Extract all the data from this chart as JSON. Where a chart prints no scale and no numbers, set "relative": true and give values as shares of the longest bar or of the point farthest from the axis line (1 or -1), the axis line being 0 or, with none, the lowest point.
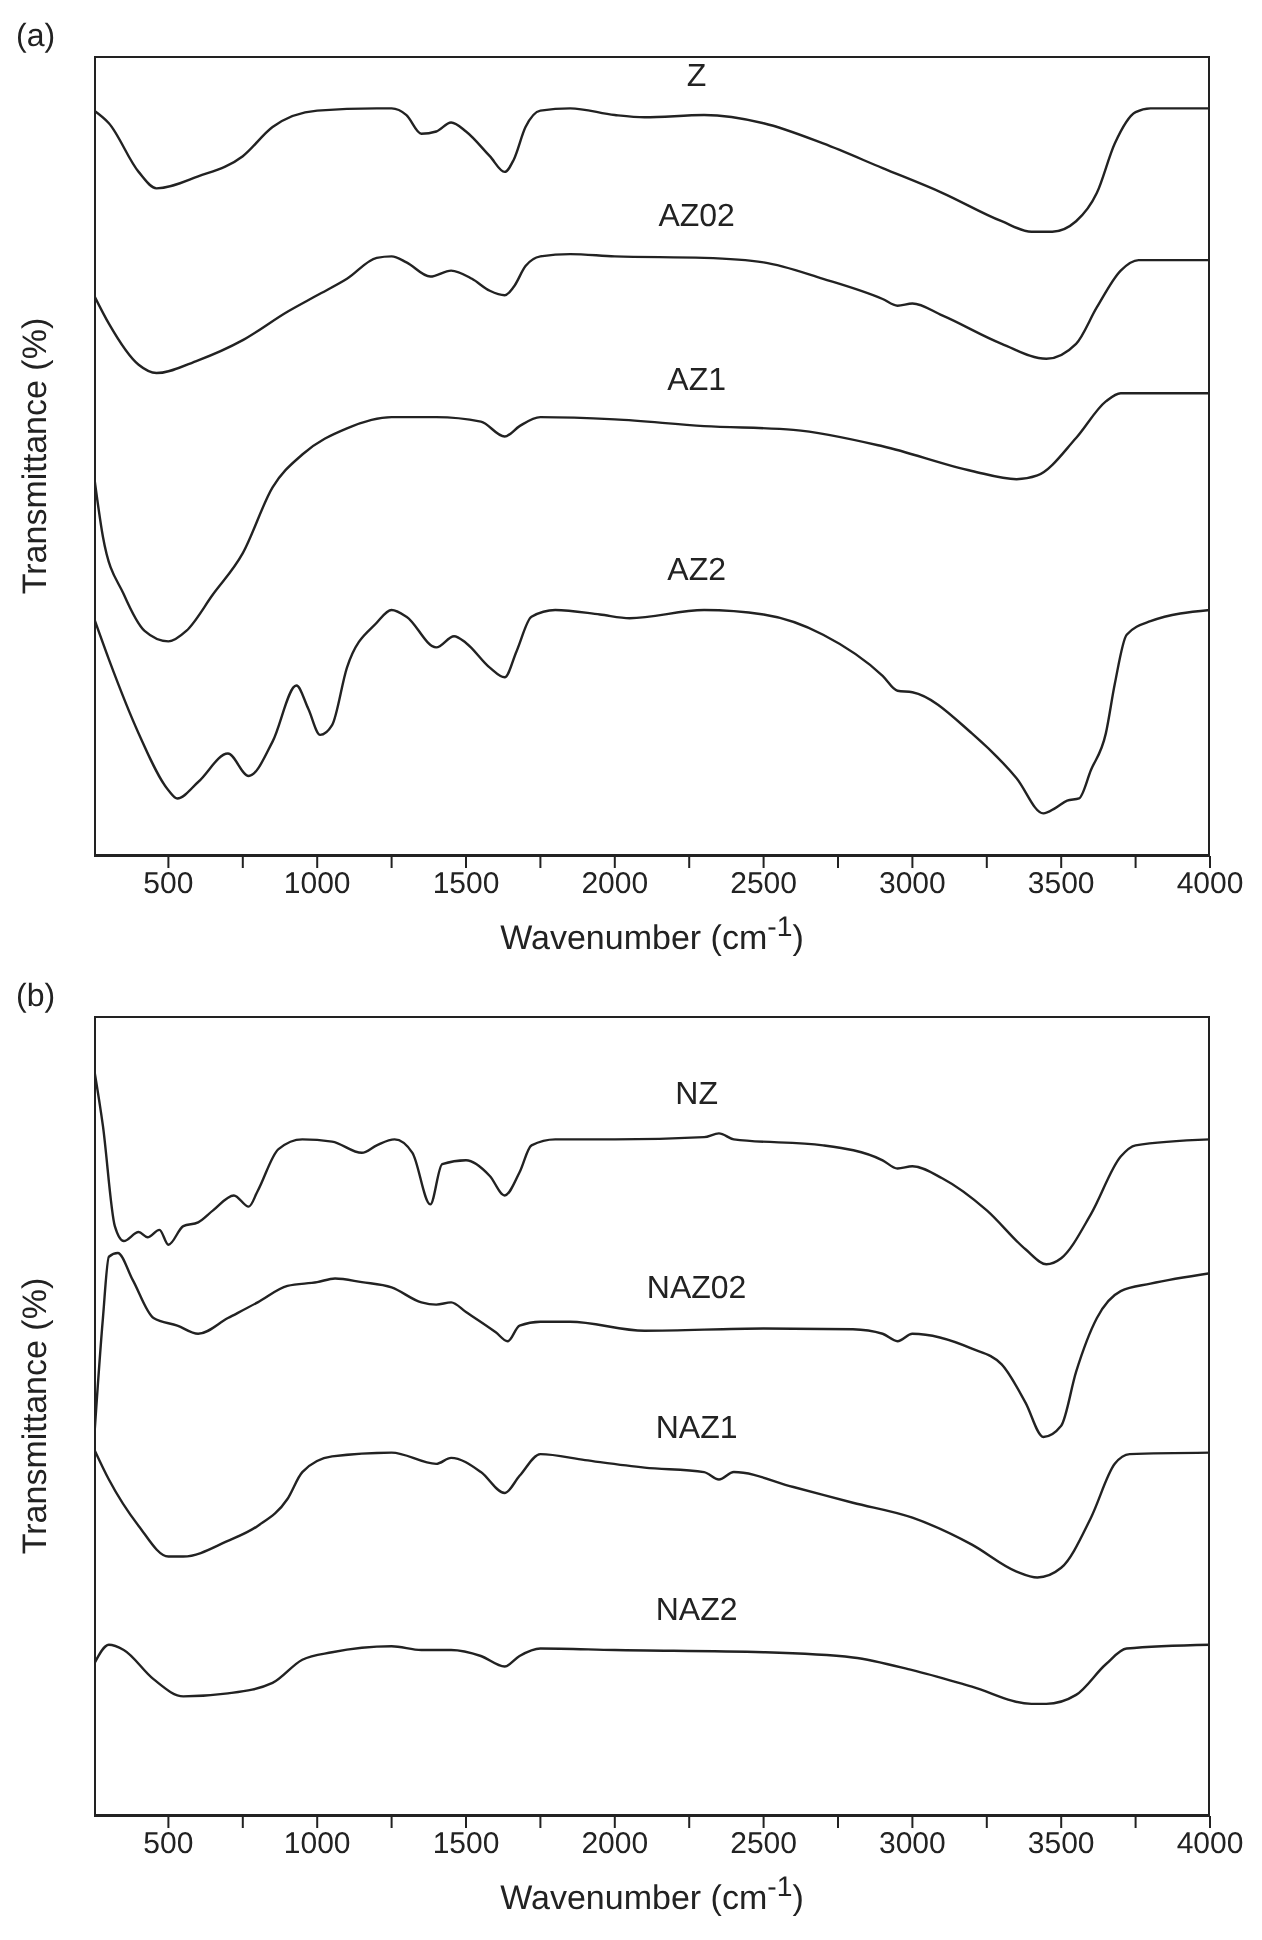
{
  "chart_data": [
    {
      "type": "line",
      "title": "(a)",
      "xlabel": "Wavenumber (cm$^{-1}$)",
      "ylabel": "Transmittance (%)",
      "relative": true,
      "xlim": [
        250,
        4000
      ],
      "xticks": [
        500,
        {
          "value": 750,
          "label": null
        },
        1000,
        {
          "value": 1250,
          "label": null
        },
        1500,
        {
          "value": 1750,
          "label": null
        },
        2000,
        {
          "value": 2250,
          "label": null
        },
        2500,
        {
          "value": 2750,
          "label": null
        },
        3000,
        {
          "value": 3250,
          "label": null
        },
        3500,
        {
          "value": 3750,
          "label": null
        },
        4000
      ],
      "series": [
        {
          "name": "Z",
          "color": "#222222",
          "x": [
            250,
            300,
            400,
            460,
            600,
            750,
            850,
            1000,
            1200,
            1250,
            1300,
            1350,
            1400,
            1450,
            1500,
            1580,
            1630,
            1660,
            1700,
            1750,
            1850,
            2000,
            2100,
            2300,
            2500,
            2700,
            2900,
            3100,
            3300,
            3400,
            3470,
            3550,
            3620,
            3680,
            3750,
            3800,
            4000
          ],
          "values": [
            0.997,
            0.98,
            0.915,
            0.893,
            0.909,
            0.936,
            0.975,
            0.997,
            1,
            1,
            0.991,
            0.966,
            0.969,
            0.981,
            0.969,
            0.936,
            0.915,
            0.931,
            0.975,
            0.997,
            1,
            0.991,
            0.988,
            0.991,
            0.98,
            0.953,
            0.92,
            0.887,
            0.849,
            0.835,
            0.835,
            0.849,
            0.887,
            0.953,
            0.995,
            1,
            1
          ]
        },
        {
          "name": "AZ02",
          "color": "#222222",
          "x": [
            250,
            300,
            400,
            460,
            600,
            750,
            900,
            1000,
            1100,
            1200,
            1250,
            1300,
            1380,
            1450,
            1520,
            1580,
            1630,
            1660,
            1700,
            1750,
            1850,
            2000,
            2300,
            2500,
            2700,
            2900,
            2950,
            3000,
            3100,
            3300,
            3450,
            3550,
            3620,
            3700,
            3760,
            4000
          ],
          "values": [
            0.75,
            0.712,
            0.657,
            0.646,
            0.663,
            0.69,
            0.728,
            0.75,
            0.772,
            0.8,
            0.802,
            0.794,
            0.775,
            0.783,
            0.772,
            0.756,
            0.75,
            0.761,
            0.789,
            0.802,
            0.805,
            0.802,
            0.8,
            0.794,
            0.772,
            0.745,
            0.736,
            0.739,
            0.723,
            0.685,
            0.665,
            0.685,
            0.734,
            0.783,
            0.797,
            0.797
          ]
        },
        {
          "name": "AZ1",
          "color": "#222222",
          "x": [
            250,
            280,
            350,
            420,
            500,
            560,
            650,
            750,
            850,
            950,
            1100,
            1250,
            1400,
            1550,
            1630,
            1680,
            1750,
            2000,
            2300,
            2600,
            2900,
            3200,
            3350,
            3420,
            3550,
            3650,
            3700,
            4000
          ],
          "values": [
            0.509,
            0.427,
            0.35,
            0.301,
            0.287,
            0.301,
            0.35,
            0.405,
            0.493,
            0.537,
            0.572,
            0.587,
            0.587,
            0.581,
            0.561,
            0.575,
            0.587,
            0.584,
            0.575,
            0.57,
            0.548,
            0.515,
            0.504,
            0.509,
            0.559,
            0.608,
            0.619,
            0.619
          ]
        },
        {
          "name": "AZ2",
          "color": "#222222",
          "x": [
            250,
            300,
            400,
            500,
            530,
            600,
            700,
            770,
            850,
            930,
            970,
            1010,
            1050,
            1100,
            1200,
            1250,
            1300,
            1400,
            1460,
            1500,
            1580,
            1630,
            1670,
            1720,
            1800,
            1950,
            2050,
            2300,
            2500,
            2700,
            2900,
            2950,
            3000,
            3200,
            3350,
            3440,
            3480,
            3520,
            3560,
            3600,
            3650,
            3680,
            3720,
            3800,
            4000
          ],
          "values": [
            0.318,
            0.263,
            0.164,
            0.088,
            0.077,
            0.099,
            0.137,
            0.107,
            0.153,
            0.228,
            0.197,
            0.162,
            0.175,
            0.252,
            0.312,
            0.329,
            0.32,
            0.279,
            0.294,
            0.285,
            0.252,
            0.239,
            0.274,
            0.32,
            0.329,
            0.323,
            0.318,
            0.329,
            0.323,
            0.296,
            0.241,
            0.221,
            0.219,
            0.164,
            0.104,
            0.057,
            0.064,
            0.074,
            0.077,
            0.115,
            0.164,
            0.23,
            0.296,
            0.314,
            0.329
          ]
        }
      ]
    },
    {
      "type": "line",
      "title": "(b)",
      "xlabel": "Wavenumber (cm$^{-1}$)",
      "ylabel": "Transmittance (%)",
      "relative": true,
      "xlim": [
        250,
        4000
      ],
      "xticks": [
        500,
        {
          "value": 750,
          "label": null
        },
        1000,
        {
          "value": 1250,
          "label": null
        },
        1500,
        {
          "value": 1750,
          "label": null
        },
        2000,
        {
          "value": 2250,
          "label": null
        },
        2500,
        {
          "value": 2750,
          "label": null
        },
        3000,
        {
          "value": 3250,
          "label": null
        },
        3500,
        {
          "value": 3750,
          "label": null
        },
        4000
      ],
      "series": [
        {
          "name": "NZ",
          "color": "#222222",
          "x": [
            250,
            280,
            320,
            350,
            400,
            430,
            470,
            500,
            550,
            600,
            650,
            720,
            770,
            800,
            870,
            950,
            1050,
            1150,
            1200,
            1260,
            1320,
            1380,
            1420,
            1500,
            1580,
            1630,
            1680,
            1720,
            1800,
            2000,
            2300,
            2350,
            2400,
            2700,
            2900,
            2950,
            3000,
            3100,
            3250,
            3380,
            3450,
            3500,
            3600,
            3700,
            3750,
            4000
          ],
          "values": [
            1,
            0.923,
            0.789,
            0.769,
            0.781,
            0.774,
            0.784,
            0.764,
            0.789,
            0.794,
            0.81,
            0.83,
            0.815,
            0.836,
            0.892,
            0.905,
            0.902,
            0.887,
            0.897,
            0.905,
            0.887,
            0.818,
            0.872,
            0.877,
            0.856,
            0.83,
            0.861,
            0.897,
            0.905,
            0.905,
            0.908,
            0.913,
            0.905,
            0.897,
            0.877,
            0.866,
            0.869,
            0.853,
            0.81,
            0.758,
            0.738,
            0.746,
            0.805,
            0.882,
            0.897,
            0.905
          ]
        },
        {
          "name": "NAZ02",
          "color": "#222222",
          "x": [
            250,
            280,
            300,
            330,
            380,
            450,
            530,
            600,
            700,
            800,
            900,
            1000,
            1060,
            1150,
            1250,
            1350,
            1400,
            1450,
            1500,
            1600,
            1640,
            1680,
            1750,
            1850,
            2100,
            2500,
            2800,
            2900,
            2950,
            3000,
            3200,
            3300,
            3380,
            3440,
            3500,
            3550,
            3620,
            3700,
            3800,
            4000
          ],
          "values": [
            0.502,
            0.666,
            0.748,
            0.753,
            0.717,
            0.666,
            0.656,
            0.645,
            0.666,
            0.687,
            0.709,
            0.714,
            0.719,
            0.714,
            0.707,
            0.687,
            0.684,
            0.687,
            0.674,
            0.647,
            0.635,
            0.656,
            0.661,
            0.661,
            0.649,
            0.652,
            0.651,
            0.645,
            0.635,
            0.645,
            0.625,
            0.604,
            0.553,
            0.507,
            0.522,
            0.594,
            0.666,
            0.702,
            0.712,
            0.726
          ]
        },
        {
          "name": "NAZ1",
          "color": "#222222",
          "x": [
            250,
            300,
            400,
            500,
            550,
            700,
            800,
            900,
            950,
            1050,
            1250,
            1400,
            1450,
            1550,
            1630,
            1680,
            1750,
            1900,
            2100,
            2300,
            2350,
            2400,
            2600,
            2800,
            3000,
            3200,
            3350,
            3420,
            3500,
            3600,
            3680,
            3730,
            4000
          ],
          "values": [
            0.491,
            0.45,
            0.388,
            0.347,
            0.347,
            0.368,
            0.388,
            0.424,
            0.46,
            0.481,
            0.486,
            0.471,
            0.479,
            0.46,
            0.432,
            0.455,
            0.484,
            0.476,
            0.466,
            0.46,
            0.45,
            0.46,
            0.44,
            0.419,
            0.399,
            0.363,
            0.327,
            0.319,
            0.332,
            0.399,
            0.471,
            0.484,
            0.486
          ]
        },
        {
          "name": "NAZ2",
          "color": "#222222",
          "x": [
            250,
            300,
            350,
            450,
            550,
            700,
            850,
            950,
            1050,
            1250,
            1350,
            1450,
            1550,
            1630,
            1680,
            1750,
            2000,
            2500,
            2800,
            3000,
            3200,
            3400,
            3450,
            3550,
            3650,
            3720,
            4000
          ],
          "values": [
            0.203,
            0.229,
            0.222,
            0.183,
            0.16,
            0.164,
            0.178,
            0.209,
            0.219,
            0.227,
            0.222,
            0.222,
            0.214,
            0.2,
            0.214,
            0.224,
            0.222,
            0.219,
            0.212,
            0.195,
            0.173,
            0.15,
            0.15,
            0.162,
            0.203,
            0.224,
            0.229
          ]
        }
      ]
    }
  ]
}
